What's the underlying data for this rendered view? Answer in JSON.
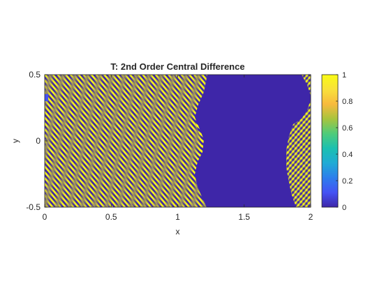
{
  "chart_data": {
    "type": "heatmap",
    "title": "T: 2nd Order Central Difference",
    "xlabel": "x",
    "ylabel": "y",
    "xlim": [
      0,
      2
    ],
    "ylim": [
      -0.5,
      0.5
    ],
    "x_ticks": [
      "0",
      "0.5",
      "1",
      "1.5",
      "2"
    ],
    "x_tick_values": [
      0,
      0.5,
      1,
      1.5,
      2
    ],
    "y_ticks": [
      "-0.5",
      "0",
      "0.5"
    ],
    "y_tick_values": [
      -0.5,
      0,
      0.5
    ],
    "colorbar": {
      "range": [
        0,
        1
      ],
      "ticks": [
        "0",
        "0.2",
        "0.4",
        "0.6",
        "0.8",
        "1"
      ],
      "tick_values": [
        0,
        0.2,
        0.4,
        0.6,
        0.8,
        1
      ],
      "colormap": "parula",
      "colors": [
        "#3e26a8",
        "#4452f4",
        "#2c7eec",
        "#1fabd5",
        "#1bc0b0",
        "#4fcc7a",
        "#a8c43d",
        "#f8ba3d",
        "#f9e13a",
        "#f9fb15"
      ]
    },
    "regions": [
      {
        "value": 0,
        "label": "uniform low (T=0) band",
        "x_range": [
          1.15,
          1.85
        ]
      },
      {
        "value": "oscillating 0-1",
        "label": "fine stripe pattern",
        "x_range": [
          0,
          1.15
        ]
      },
      {
        "value": "oscillating 0-1",
        "label": "fine stripe pattern",
        "x_range": [
          1.85,
          2
        ]
      }
    ],
    "grid": false,
    "legend": "none"
  }
}
